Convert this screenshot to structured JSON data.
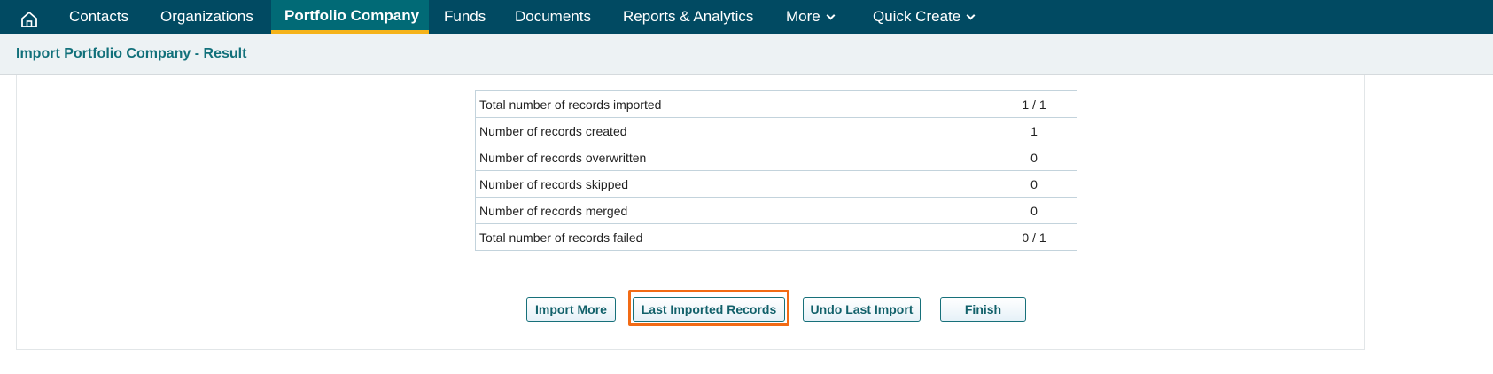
{
  "nav": {
    "home_icon": "home-icon",
    "items": [
      {
        "label": "Contacts"
      },
      {
        "label": "Organizations"
      },
      {
        "label": "Portfolio Company",
        "active": true
      },
      {
        "label": "Funds"
      },
      {
        "label": "Documents"
      },
      {
        "label": "Reports & Analytics"
      },
      {
        "label": "More"
      },
      {
        "label": "Quick Create"
      }
    ]
  },
  "colors": {
    "nav_bg": "#014a62",
    "active_tab": "#016a76",
    "active_underline": "#f5b31a",
    "highlight": "#f26b15",
    "title": "#11707a"
  },
  "header": {
    "title": "Import Portfolio Company - Result"
  },
  "results": [
    {
      "label": "Total number of records imported",
      "value": "1 / 1"
    },
    {
      "label": "Number of records created",
      "value": "1"
    },
    {
      "label": "Number of records overwritten",
      "value": "0"
    },
    {
      "label": "Number of records skipped",
      "value": "0"
    },
    {
      "label": "Number of records merged",
      "value": "0"
    },
    {
      "label": "Total number of records failed",
      "value": "0 / 1"
    }
  ],
  "buttons": {
    "import_more": "Import More",
    "last_imported": "Last Imported Records",
    "undo": "Undo Last Import",
    "finish": "Finish"
  }
}
